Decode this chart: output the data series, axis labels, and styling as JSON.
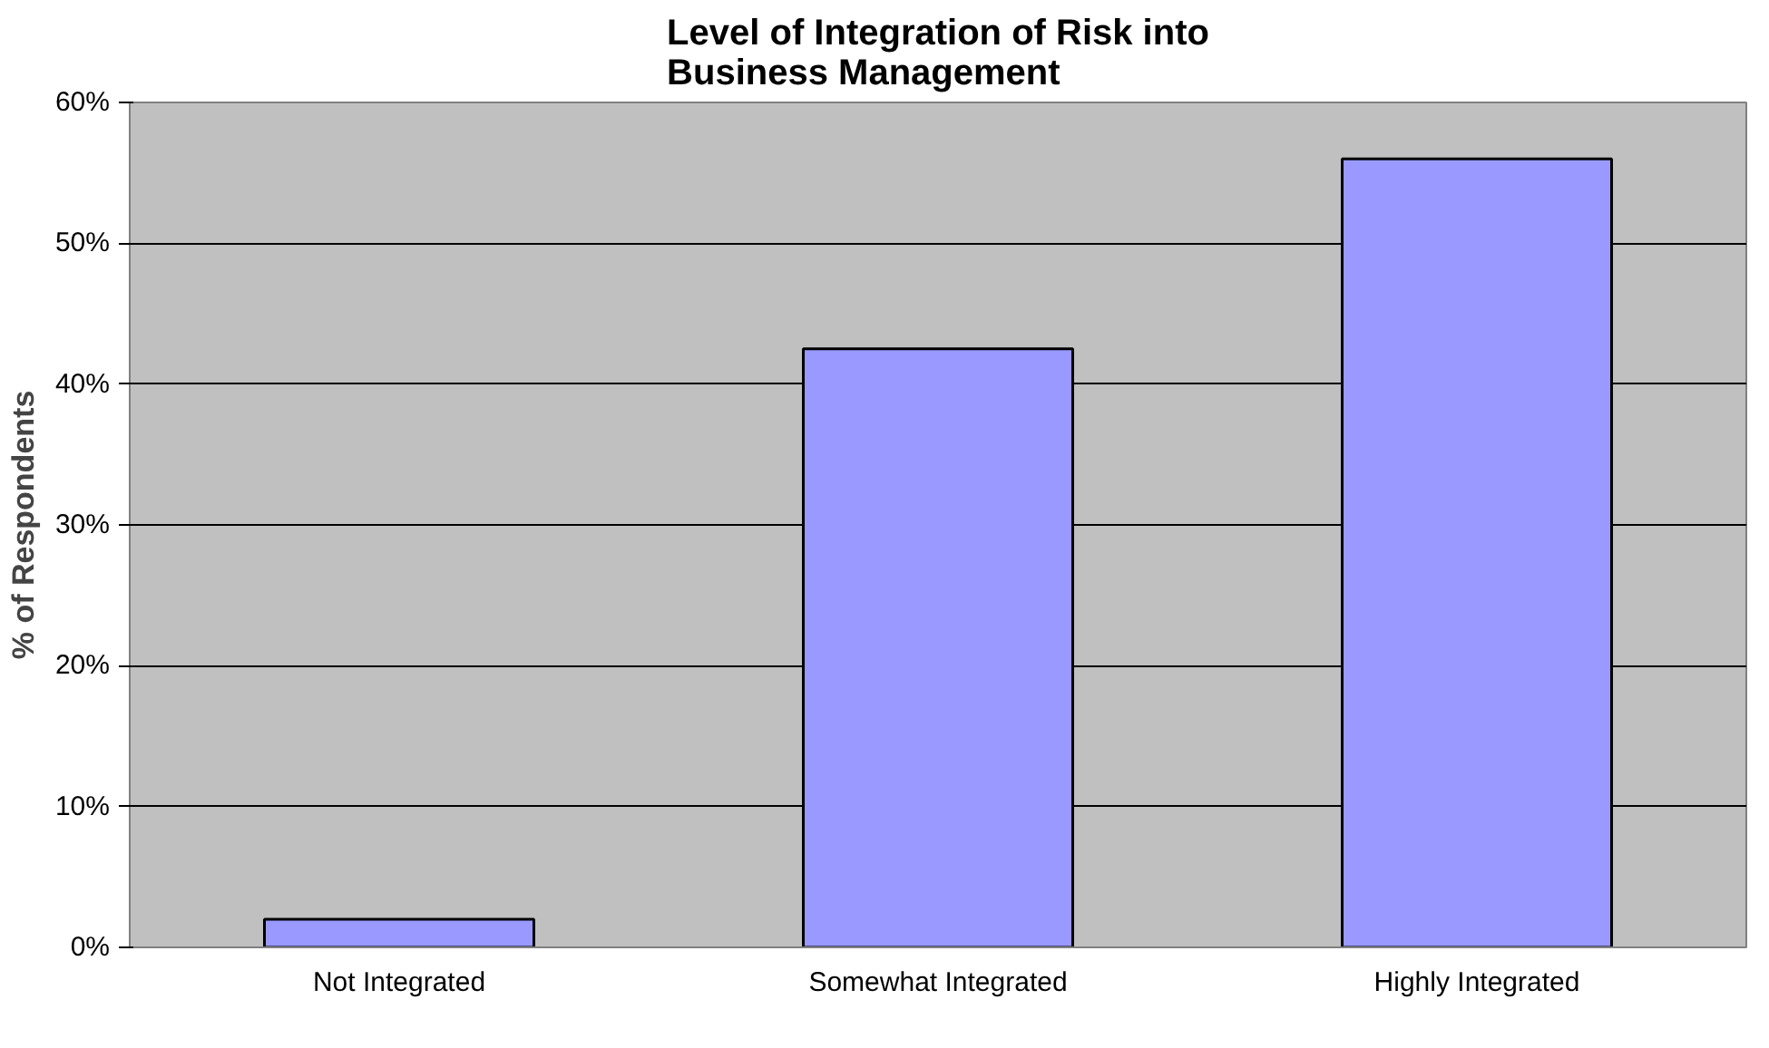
{
  "chart_data": {
    "type": "bar",
    "title": "Level of Integration of Risk into Business Management",
    "ylabel": "% of Respondents",
    "categories": [
      "Not Integrated",
      "Somewhat Integrated",
      "Highly Integrated"
    ],
    "values": [
      0.02,
      0.425,
      0.56
    ],
    "color": "#9999ff",
    "ylim": [
      0,
      0.6
    ],
    "yticks": [
      {
        "value": 0,
        "label": "0%"
      },
      {
        "value": 0.1,
        "label": "10%"
      },
      {
        "value": 0.2,
        "label": "20%"
      },
      {
        "value": 0.3,
        "label": "30%"
      },
      {
        "value": 0.4,
        "label": "40%"
      },
      {
        "value": 0.5,
        "label": "50%"
      },
      {
        "value": 0.6,
        "label": "60%"
      }
    ],
    "grid": "y"
  }
}
